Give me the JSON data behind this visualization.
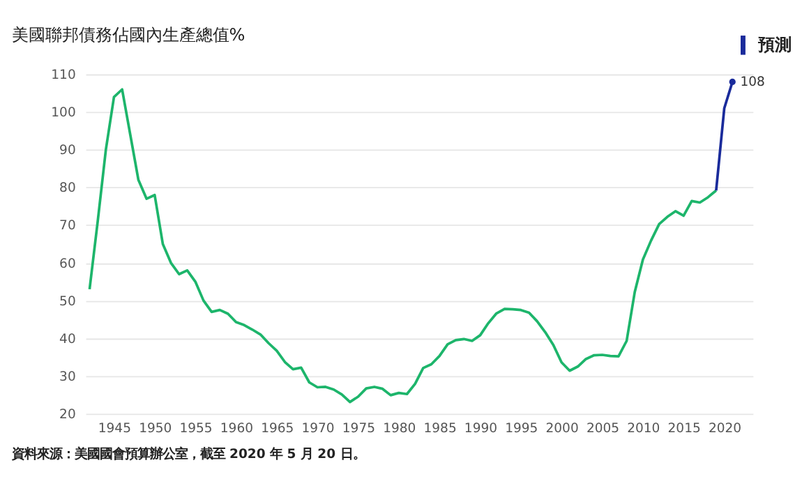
{
  "chart_data": {
    "type": "line",
    "title": "美國聯邦債務佔國內生產總值%",
    "x": [
      1942,
      1943,
      1944,
      1945,
      1946,
      1947,
      1948,
      1949,
      1950,
      1951,
      1952,
      1953,
      1954,
      1955,
      1956,
      1957,
      1958,
      1959,
      1960,
      1961,
      1962,
      1963,
      1964,
      1965,
      1966,
      1967,
      1968,
      1969,
      1970,
      1971,
      1972,
      1973,
      1974,
      1975,
      1976,
      1977,
      1978,
      1979,
      1980,
      1981,
      1982,
      1983,
      1984,
      1985,
      1986,
      1987,
      1988,
      1989,
      1990,
      1991,
      1992,
      1993,
      1994,
      1995,
      1996,
      1997,
      1998,
      1999,
      2000,
      2001,
      2002,
      2003,
      2004,
      2005,
      2006,
      2007,
      2008,
      2009,
      2010,
      2011,
      2012,
      2013,
      2014,
      2015,
      2016,
      2017,
      2018,
      2019
    ],
    "series": [
      {
        "color": "#1db56b",
        "values": [
          53,
          71,
          90,
          104,
          106,
          94,
          82,
          77,
          78,
          65,
          60,
          57,
          58,
          55,
          50,
          47,
          47.5,
          46.5,
          44.3,
          43.5,
          42.3,
          41,
          38.7,
          36.7,
          33.7,
          31.8,
          32.2,
          28.3,
          27,
          27.1,
          26.4,
          25.1,
          23.1,
          24.5,
          26.7,
          27.1,
          26.6,
          24.9,
          25.5,
          25.2,
          27.9,
          32.1,
          33.1,
          35.3,
          38.4,
          39.5,
          39.8,
          39.3,
          40.8,
          44,
          46.6,
          47.8,
          47.7,
          47.5,
          46.8,
          44.5,
          41.6,
          38.2,
          33.6,
          31.4,
          32.5,
          34.5,
          35.5,
          35.6,
          35.3,
          35.2,
          39.3,
          52.3,
          60.9,
          65.9,
          70.3,
          72.2,
          73.7,
          72.5,
          76.4,
          76,
          77.4,
          79.2
        ]
      },
      {
        "name": "預測",
        "color": "#1a2b9b",
        "x": [
          2019,
          2020,
          2021
        ],
        "values": [
          79.2,
          101,
          108
        ]
      }
    ],
    "xlim": [
      1941.5,
      2023.5
    ],
    "xticks": [
      1945,
      1950,
      1955,
      1960,
      1965,
      1970,
      1975,
      1980,
      1985,
      1990,
      1995,
      2000,
      2005,
      2010,
      2015,
      2020
    ],
    "ylim": [
      20,
      110
    ],
    "yticks": [
      20,
      30,
      40,
      50,
      60,
      70,
      80,
      90,
      100,
      110
    ],
    "grid": "y",
    "legend": "top right",
    "annotations": [
      {
        "text": "108",
        "x": 2021,
        "y": 108
      },
      "資料來源：美國國會預算辦公室，截至 2020 年 5 月 20 日。"
    ]
  }
}
